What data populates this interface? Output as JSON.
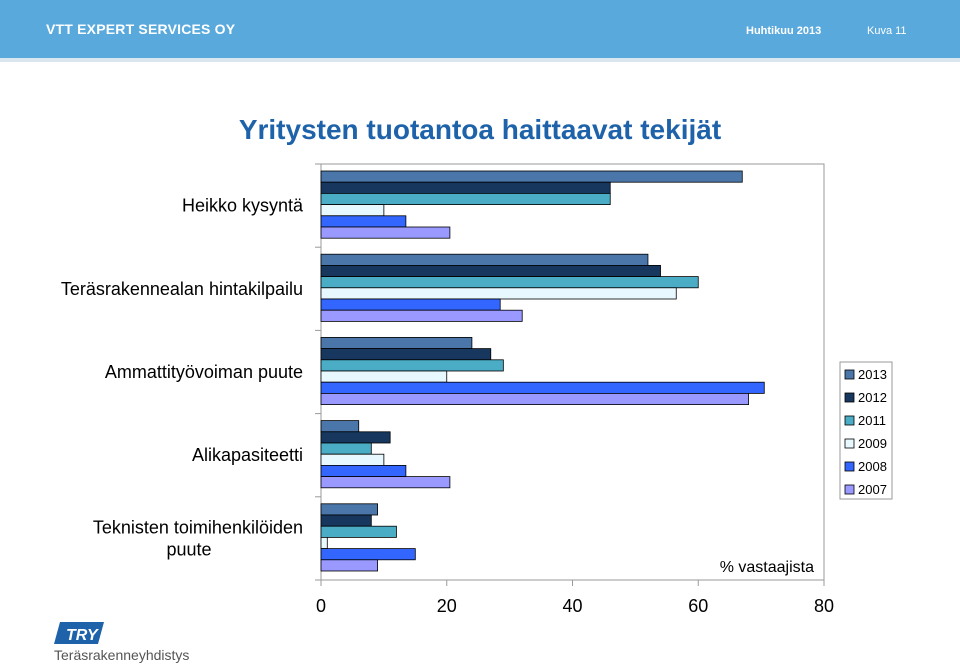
{
  "header": {
    "company": "VTT EXPERT SERVICES OY",
    "date": "Huhtikuu 2013",
    "slide": "Kuva 11"
  },
  "footer": {
    "logo_mark": "TRY",
    "logo_text": "Teräsrakenneyhdistys"
  },
  "chart_data": {
    "type": "bar",
    "orientation": "horizontal",
    "title": "Yritysten tuotantoa haittaavat tekijät",
    "xlabel": "% vastaajista",
    "xlim": [
      0,
      80
    ],
    "xticks": [
      0,
      20,
      40,
      60,
      80
    ],
    "grid": false,
    "legend_position": "right",
    "categories": [
      "Heikko kysyntä",
      "Teräsrakennealan hintakilpailu",
      "Ammattityövoiman puute",
      "Alikapasiteetti",
      "Teknisten toimihenkilöiden puute"
    ],
    "series": [
      {
        "name": "2013",
        "color": "#4a76aa",
        "values": [
          67,
          52,
          24,
          6,
          9
        ]
      },
      {
        "name": "2012",
        "color": "#17375e",
        "values": [
          46,
          54,
          27,
          11,
          8
        ]
      },
      {
        "name": "2011",
        "color": "#4bacc6",
        "values": [
          46,
          60,
          29,
          8,
          12
        ]
      },
      {
        "name": "2009",
        "color": "#e8f8ff",
        "values": [
          10,
          56.5,
          20,
          10,
          1
        ]
      },
      {
        "name": "2008",
        "color": "#3366ff",
        "values": [
          13.5,
          28.5,
          70.5,
          13.5,
          15
        ]
      },
      {
        "name": "2007",
        "color": "#9999ff",
        "values": [
          20.5,
          32,
          68,
          20.5,
          9
        ]
      }
    ]
  }
}
